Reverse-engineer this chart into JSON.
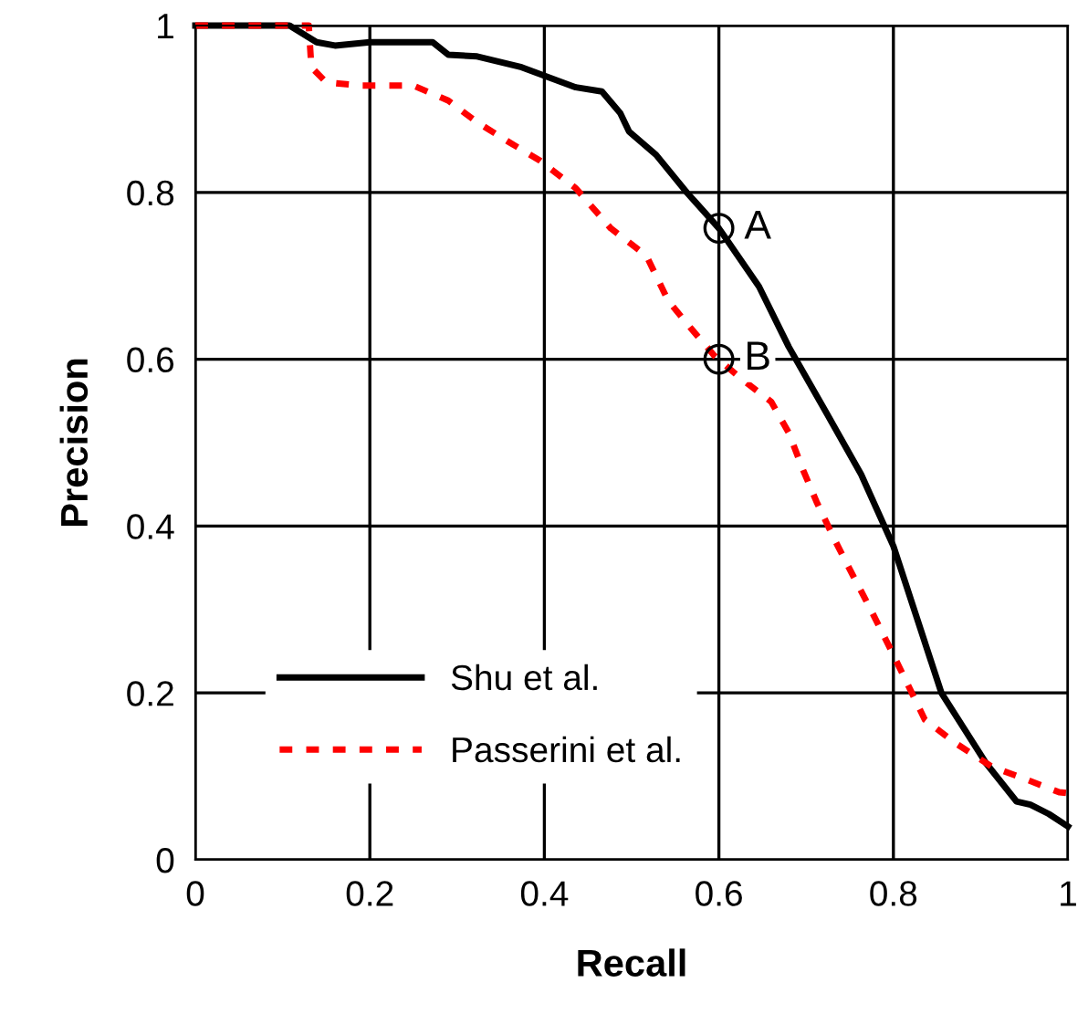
{
  "chart_data": {
    "type": "line",
    "xlabel": "Recall",
    "ylabel": "Precision",
    "xlim": [
      0,
      1
    ],
    "ylim": [
      0,
      1
    ],
    "xticks": [
      0,
      0.2,
      0.4,
      0.6,
      0.8,
      1
    ],
    "yticks": [
      0,
      0.2,
      0.4,
      0.6,
      0.8,
      1
    ],
    "grid": true,
    "legend": "bottom left",
    "marker": "none",
    "series": [
      {
        "name": "Shu et al.",
        "color": "#000000",
        "line_style": "solid",
        "x": [
          0,
          0.108,
          0.139,
          0.16,
          0.2,
          0.272,
          0.29,
          0.323,
          0.374,
          0.436,
          0.466,
          0.487,
          0.497,
          0.528,
          0.564,
          0.6,
          0.646,
          0.68,
          0.722,
          0.763,
          0.8,
          0.855,
          0.906,
          0.941,
          0.957,
          0.978,
          1
        ],
        "values": [
          1,
          1,
          0.98,
          0.976,
          0.98,
          0.98,
          0.965,
          0.963,
          0.95,
          0.926,
          0.921,
          0.895,
          0.873,
          0.845,
          0.799,
          0.757,
          0.687,
          0.615,
          0.538,
          0.462,
          0.376,
          0.2,
          0.116,
          0.07,
          0.066,
          0.055,
          0.04
        ]
      },
      {
        "name": "Passerini et al.",
        "color": "#ff0000",
        "line_style": "dashed",
        "x": [
          0,
          0.13,
          0.133,
          0.15,
          0.19,
          0.25,
          0.29,
          0.323,
          0.36,
          0.395,
          0.436,
          0.476,
          0.517,
          0.542,
          0.568,
          0.595,
          0.624,
          0.66,
          0.68,
          0.697,
          0.712,
          0.732,
          0.753,
          0.773,
          0.796,
          0.836,
          0.871,
          0.912,
          0.953,
          0.99,
          1
        ],
        "values": [
          1,
          1,
          0.95,
          0.932,
          0.928,
          0.928,
          0.91,
          0.884,
          0.86,
          0.838,
          0.805,
          0.757,
          0.724,
          0.67,
          0.637,
          0.604,
          0.578,
          0.549,
          0.512,
          0.466,
          0.429,
          0.385,
          0.342,
          0.302,
          0.254,
          0.168,
          0.14,
          0.112,
          0.096,
          0.081,
          0.08
        ]
      }
    ],
    "annotations": [
      {
        "text": "A",
        "x": 0.6,
        "y": 0.757
      },
      {
        "text": "B",
        "x": 0.6,
        "y": 0.6
      }
    ]
  }
}
